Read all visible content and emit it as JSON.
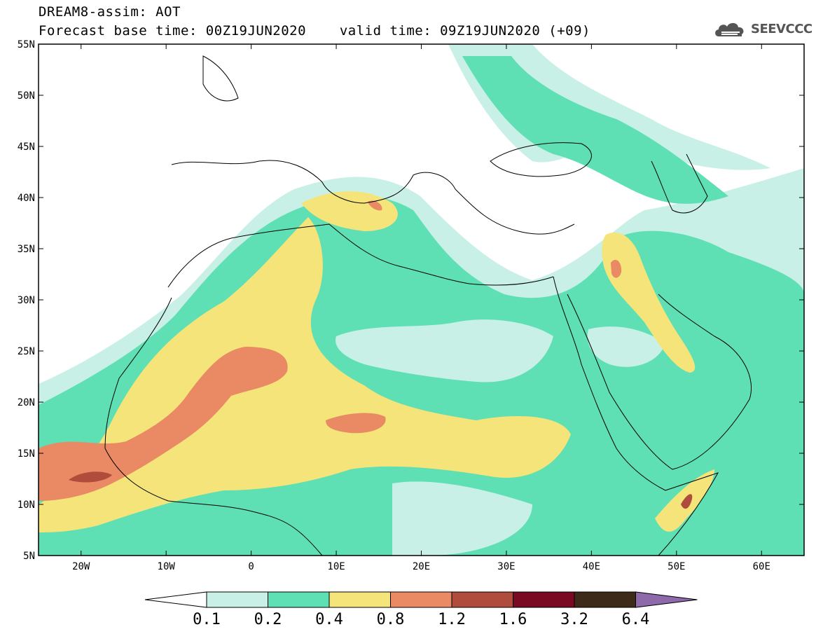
{
  "title": {
    "line1": "DREAM8-assim: AOT",
    "base_label": "Forecast base time: 00Z19JUN2020",
    "valid_label": "valid time: 09Z19JUN2020 (+09)"
  },
  "logo": {
    "text": "SEEVCCC",
    "icon": "cloud-icon"
  },
  "map": {
    "lon_range": [
      -25,
      65
    ],
    "lat_range": [
      5,
      55
    ],
    "lat_ticks": [
      {
        "value": 55,
        "label": "55N"
      },
      {
        "value": 50,
        "label": "50N"
      },
      {
        "value": 45,
        "label": "45N"
      },
      {
        "value": 40,
        "label": "40N"
      },
      {
        "value": 35,
        "label": "35N"
      },
      {
        "value": 30,
        "label": "30N"
      },
      {
        "value": 25,
        "label": "25N"
      },
      {
        "value": 20,
        "label": "20N"
      },
      {
        "value": 15,
        "label": "15N"
      },
      {
        "value": 10,
        "label": "10N"
      },
      {
        "value": 5,
        "label": "5N"
      }
    ],
    "lon_ticks": [
      {
        "value": -20,
        "label": "20W"
      },
      {
        "value": -10,
        "label": "10W"
      },
      {
        "value": 0,
        "label": "0"
      },
      {
        "value": 10,
        "label": "10E"
      },
      {
        "value": 20,
        "label": "20E"
      },
      {
        "value": 30,
        "label": "30E"
      },
      {
        "value": 40,
        "label": "40E"
      },
      {
        "value": 50,
        "label": "50E"
      },
      {
        "value": 60,
        "label": "60E"
      }
    ],
    "colors": {
      "c01": "#c8f0e6",
      "c02": "#5edfb4",
      "c04": "#f5e47a",
      "c08": "#e98a64",
      "c12": "#b04c3c",
      "c16": "#7a0a22",
      "c32": "#3e2a18",
      "c64": "#8e6aaa"
    }
  },
  "colorbar": {
    "labels": [
      "0.1",
      "0.2",
      "0.4",
      "0.8",
      "1.2",
      "1.6",
      "3.2",
      "6.4"
    ],
    "colors": [
      "#c8f0e6",
      "#5edfb4",
      "#f5e47a",
      "#e98a64",
      "#b04c3c",
      "#7a0a22",
      "#3e2a18"
    ],
    "under_color": "#ffffff",
    "over_color": "#8e6aaa"
  }
}
